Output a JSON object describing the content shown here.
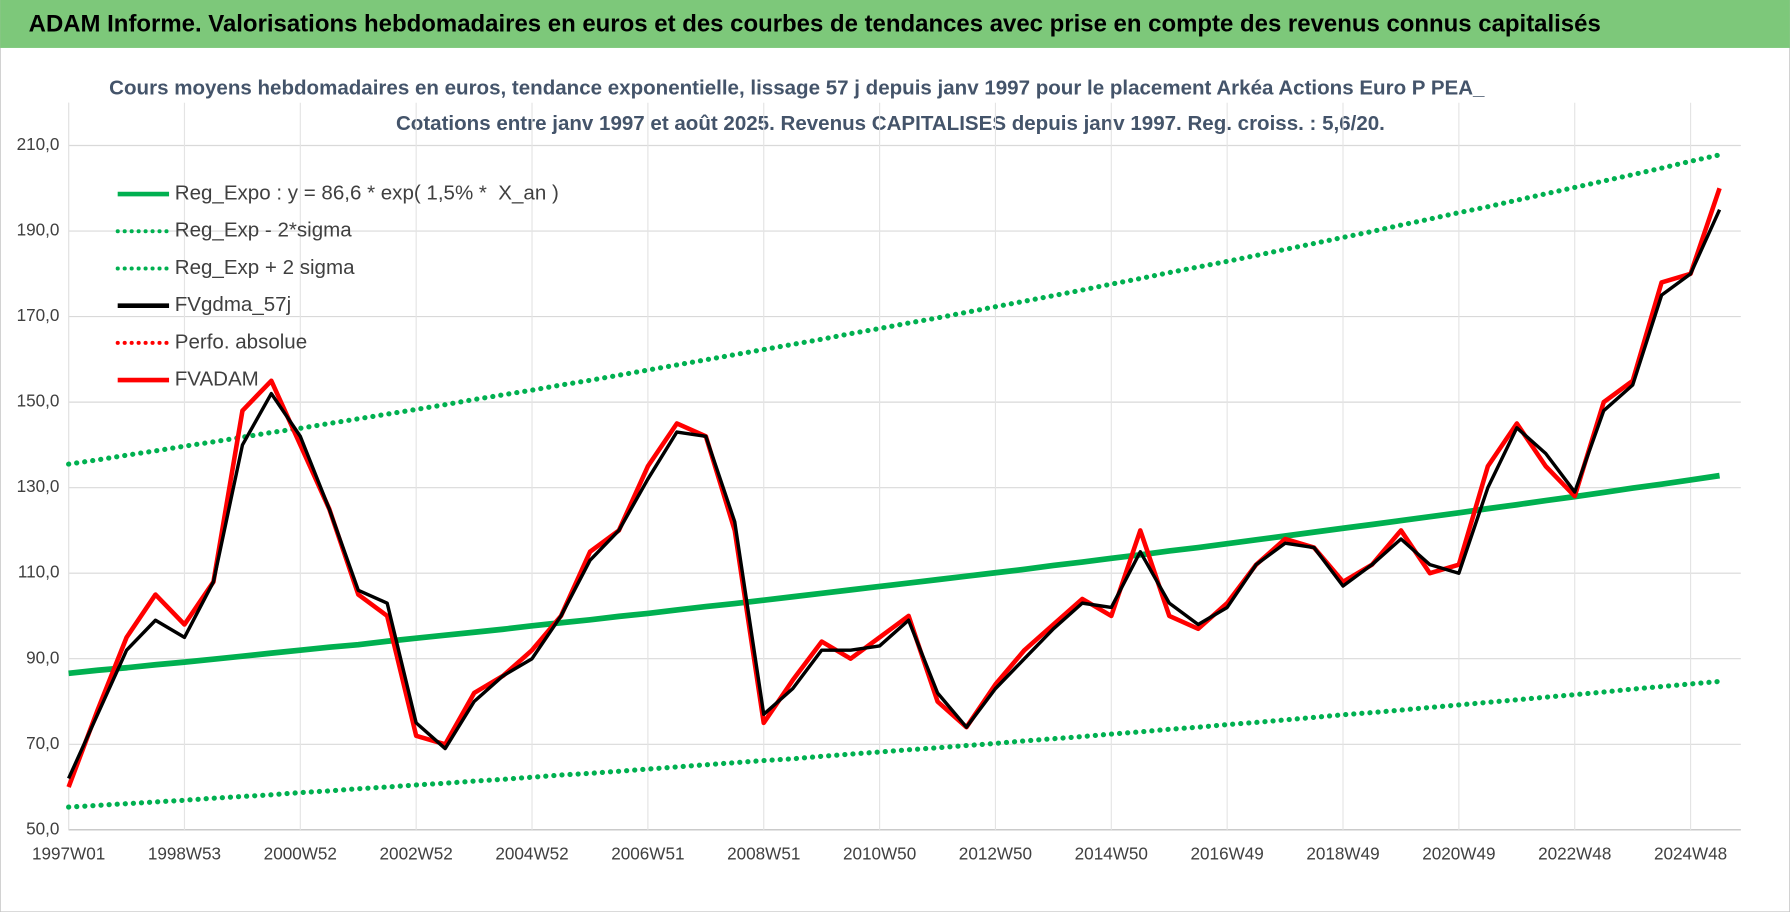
{
  "header": {
    "title": "ADAM Informe. Valorisations hebdomadaires en euros et des courbes de tendances avec prise en compte des revenus connus capitalisés"
  },
  "chart_data": {
    "type": "line",
    "title": "Cours moyens hebdomadaires en euros, tendance exponentielle, lissage 57 j depuis janv 1997 pour le placement Arkéa Actions Euro P PEA_",
    "subtitle": "Cotations entre janv 1997 et août 2025. Revenus CAPITALISES depuis janv 1997. Reg. croiss. : 5,6/20.",
    "categories": [
      "1997W01",
      null,
      null,
      null,
      "1998W53",
      null,
      null,
      null,
      "2000W52",
      null,
      null,
      null,
      "2002W52",
      null,
      null,
      null,
      "2004W52",
      null,
      null,
      null,
      "2006W51",
      null,
      null,
      null,
      "2008W51",
      null,
      null,
      null,
      "2010W50",
      null,
      null,
      null,
      "2012W50",
      null,
      null,
      null,
      "2014W50",
      null,
      null,
      null,
      "2016W49",
      null,
      null,
      null,
      "2018W49",
      null,
      null,
      null,
      "2020W49",
      null,
      null,
      null,
      "2022W48",
      null,
      null,
      null,
      "2024W48",
      null
    ],
    "ylim": [
      50,
      220
    ],
    "yticks": [
      {
        "value": 50,
        "label": "50,0"
      },
      {
        "value": 70,
        "label": "70,0"
      },
      {
        "value": 90,
        "label": "90,0"
      },
      {
        "value": 110,
        "label": "110,0"
      },
      {
        "value": 130,
        "label": "130,0"
      },
      {
        "value": 150,
        "label": "150,0"
      },
      {
        "value": 170,
        "label": "170,0"
      },
      {
        "value": 190,
        "label": "190,0"
      },
      {
        "value": 210,
        "label": "210,0"
      }
    ],
    "grid": true,
    "legend": "top-left",
    "series": [
      {
        "name": "Reg_Expo : y = 86,6 * exp( 1,5% *  X_an )",
        "color": "#00b050",
        "style": "solid",
        "values": [
          86.6,
          87.3,
          87.9,
          88.6,
          89.2,
          89.9,
          90.6,
          91.3,
          92.0,
          92.7,
          93.3,
          94.1,
          94.8,
          95.5,
          96.2,
          96.9,
          97.7,
          98.4,
          99.1,
          99.9,
          100.6,
          101.4,
          102.2,
          102.9,
          103.7,
          104.5,
          105.3,
          106.1,
          106.9,
          107.7,
          108.5,
          109.3,
          110.1,
          110.9,
          111.8,
          112.6,
          113.5,
          114.3,
          115.2,
          116.0,
          116.9,
          117.8,
          118.7,
          119.6,
          120.5,
          121.4,
          122.3,
          123.2,
          124.1,
          125.1,
          126.0,
          127.0,
          127.9,
          128.9,
          129.9,
          130.8,
          131.8,
          132.8
        ]
      },
      {
        "name": "Reg_Exp - 2*sigma",
        "color": "#00b050",
        "style": "dotted",
        "values": [
          55.3,
          55.7,
          56.1,
          56.5,
          56.9,
          57.4,
          57.8,
          58.2,
          58.7,
          59.1,
          59.6,
          60.0,
          60.5,
          60.9,
          61.4,
          61.8,
          62.3,
          62.8,
          63.2,
          63.7,
          64.2,
          64.7,
          65.2,
          65.7,
          66.2,
          66.6,
          67.2,
          67.7,
          68.2,
          68.7,
          69.2,
          69.7,
          70.2,
          70.8,
          71.3,
          71.8,
          72.4,
          72.9,
          73.5,
          74.0,
          74.6,
          75.1,
          75.7,
          76.3,
          76.9,
          77.4,
          78.0,
          78.6,
          79.2,
          79.8,
          80.4,
          81.0,
          81.6,
          82.2,
          82.9,
          83.5,
          84.1,
          84.7
        ]
      },
      {
        "name": "Reg_Exp + 2 sigma",
        "color": "#00b050",
        "style": "dotted",
        "values": [
          135.5,
          136.5,
          137.6,
          138.6,
          139.7,
          140.7,
          141.8,
          142.9,
          143.9,
          145.0,
          146.1,
          147.2,
          148.3,
          149.4,
          150.6,
          151.7,
          152.8,
          154.0,
          155.1,
          156.3,
          157.5,
          158.7,
          159.9,
          161.1,
          162.3,
          163.5,
          164.7,
          166.0,
          167.2,
          168.5,
          169.7,
          171.0,
          172.3,
          173.6,
          174.9,
          176.2,
          177.6,
          178.9,
          180.3,
          181.6,
          182.9,
          184.3,
          185.7,
          187.1,
          188.5,
          189.9,
          191.4,
          192.8,
          194.3,
          195.7,
          197.2,
          198.7,
          200.2,
          201.7,
          203.2,
          204.7,
          206.3,
          207.8
        ]
      },
      {
        "name": "FVgdma_57j",
        "color": "#000000",
        "style": "solid",
        "values": [
          62,
          77,
          92,
          99,
          95,
          108,
          140,
          152,
          142,
          125,
          106,
          103,
          75,
          69,
          80,
          86,
          90,
          100,
          113,
          120,
          132,
          143,
          142,
          122,
          77,
          83,
          92,
          92,
          93,
          99,
          82,
          74,
          83,
          90,
          97,
          103,
          102,
          115,
          103,
          98,
          102,
          112,
          117,
          116,
          107,
          112,
          118,
          112,
          110,
          130,
          144,
          138,
          129,
          148,
          154,
          175,
          180,
          195
        ]
      },
      {
        "name": "Perfo. absolue",
        "color": "#ff0000",
        "style": "dotted",
        "values": [
          null,
          null,
          null,
          null,
          null,
          null,
          null,
          null,
          null,
          null,
          null,
          null,
          null,
          null,
          null,
          null,
          null,
          null,
          null,
          null,
          null,
          null,
          null,
          null,
          null,
          null,
          null,
          null,
          null,
          null,
          null,
          null,
          null,
          null,
          null,
          null,
          null,
          null,
          null,
          null,
          null,
          null,
          null,
          null,
          null,
          null,
          null,
          null,
          null,
          null,
          null,
          null,
          null,
          null,
          null,
          null,
          null,
          null
        ]
      },
      {
        "name": "FVADAM",
        "color": "#ff0000",
        "style": "solid",
        "values": [
          60,
          78,
          95,
          105,
          98,
          108,
          148,
          155,
          140,
          125,
          105,
          100,
          72,
          70,
          82,
          86,
          92,
          100,
          115,
          120,
          135,
          145,
          142,
          120,
          75,
          85,
          94,
          90,
          95,
          100,
          80,
          74,
          84,
          92,
          98,
          104,
          100,
          120,
          100,
          97,
          103,
          112,
          118,
          116,
          108,
          112,
          120,
          110,
          112,
          135,
          145,
          135,
          128,
          150,
          155,
          178,
          180,
          200
        ]
      }
    ]
  }
}
